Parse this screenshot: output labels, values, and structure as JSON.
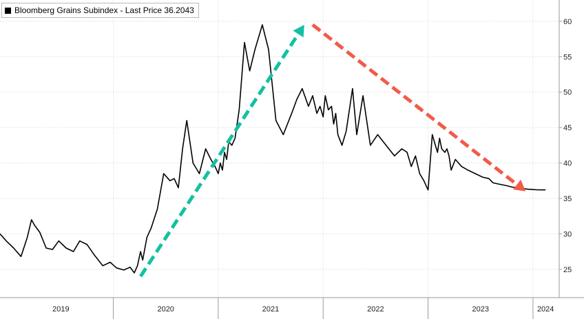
{
  "legend": {
    "label": "Bloomberg Grains Subindex - Last Price 36.2043"
  },
  "chart_data": {
    "type": "line",
    "title": "",
    "xlabel": "",
    "ylabel": "",
    "ylim": [
      21,
      63
    ],
    "xlim": [
      2018.92,
      2024.25
    ],
    "y_ticks": [
      25,
      30,
      35,
      40,
      45,
      50,
      55,
      60
    ],
    "x_tick_labels": [
      {
        "label": "2019",
        "x": 2019.5
      },
      {
        "label": "2020",
        "x": 2020.5
      },
      {
        "label": "2021",
        "x": 2021.5
      },
      {
        "label": "2022",
        "x": 2022.5
      },
      {
        "label": "2023",
        "x": 2023.5
      },
      {
        "label": "2024",
        "x": 2024.12
      }
    ],
    "year_boundaries": [
      2020,
      2021,
      2022,
      2023,
      2024
    ],
    "grid": true,
    "legend_position": "top-left",
    "series": [
      {
        "name": "Bloomberg Grains Subindex",
        "color": "#000000",
        "x": [
          2018.92,
          2018.98,
          2019.05,
          2019.12,
          2019.18,
          2019.22,
          2019.25,
          2019.3,
          2019.36,
          2019.42,
          2019.48,
          2019.55,
          2019.62,
          2019.68,
          2019.75,
          2019.82,
          2019.9,
          2019.97,
          2020.03,
          2020.1,
          2020.16,
          2020.2,
          2020.23,
          2020.26,
          2020.28,
          2020.32,
          2020.36,
          2020.42,
          2020.48,
          2020.54,
          2020.58,
          2020.62,
          2020.66,
          2020.7,
          2020.76,
          2020.82,
          2020.88,
          2020.93,
          2020.97,
          2021.0,
          2021.02,
          2021.04,
          2021.06,
          2021.08,
          2021.1,
          2021.13,
          2021.16,
          2021.2,
          2021.25,
          2021.3,
          2021.35,
          2021.42,
          2021.48,
          2021.55,
          2021.62,
          2021.7,
          2021.75,
          2021.8,
          2021.86,
          2021.9,
          2021.94,
          2021.97,
          2022.0,
          2022.02,
          2022.05,
          2022.08,
          2022.1,
          2022.12,
          2022.14,
          2022.18,
          2022.22,
          2022.28,
          2022.32,
          2022.38,
          2022.45,
          2022.52,
          2022.6,
          2022.68,
          2022.75,
          2022.8,
          2022.84,
          2022.88,
          2022.92,
          2022.96,
          2023.0,
          2023.04,
          2023.07,
          2023.09,
          2023.11,
          2023.13,
          2023.16,
          2023.18,
          2023.2,
          2023.22,
          2023.26,
          2023.32,
          2023.38,
          2023.45,
          2023.52,
          2023.58,
          2023.62,
          2023.68,
          2023.75,
          2023.8,
          2023.85,
          2023.9,
          2023.95,
          2024.0,
          2024.04,
          2024.08,
          2024.12
        ],
        "values": [
          30.0,
          29.0,
          28.0,
          26.8,
          29.5,
          32.0,
          31.2,
          30.2,
          28.0,
          27.8,
          29.0,
          28.0,
          27.5,
          29.0,
          28.5,
          27.0,
          25.5,
          26.0,
          25.2,
          24.9,
          25.3,
          24.5,
          25.5,
          27.5,
          26.3,
          29.5,
          30.8,
          33.5,
          38.5,
          37.5,
          37.8,
          36.5,
          42.0,
          46.0,
          40.0,
          38.5,
          42.0,
          40.5,
          39.5,
          38.5,
          40.0,
          39.0,
          41.5,
          40.5,
          43.0,
          42.5,
          43.5,
          47.5,
          57.0,
          53.0,
          56.0,
          59.5,
          56.0,
          46.0,
          44.0,
          47.0,
          49.0,
          50.5,
          48.0,
          49.5,
          47.0,
          48.0,
          46.5,
          49.5,
          47.5,
          48.0,
          45.5,
          47.0,
          44.0,
          42.5,
          44.5,
          50.5,
          44.0,
          49.5,
          42.5,
          44.0,
          42.5,
          41.0,
          42.0,
          41.5,
          39.5,
          41.0,
          38.5,
          37.5,
          36.2,
          44.0,
          42.5,
          41.5,
          43.5,
          42.0,
          41.5,
          42.0,
          41.0,
          39.0,
          40.5,
          39.5,
          39.0,
          38.5,
          38.0,
          37.8,
          37.2,
          37.0,
          36.8,
          36.6,
          36.5,
          36.4,
          36.3,
          36.25,
          36.22,
          36.21,
          36.2043
        ]
      }
    ],
    "annotations": [
      {
        "type": "arrow",
        "style": "dashed",
        "color": "#12c1a1",
        "from": [
          2020.26,
          24.0
        ],
        "to": [
          2021.82,
          59.5
        ]
      },
      {
        "type": "arrow",
        "style": "dashed",
        "color": "#f25a4a",
        "from": [
          2021.9,
          59.5
        ],
        "to": [
          2023.93,
          36.0
        ]
      }
    ]
  }
}
